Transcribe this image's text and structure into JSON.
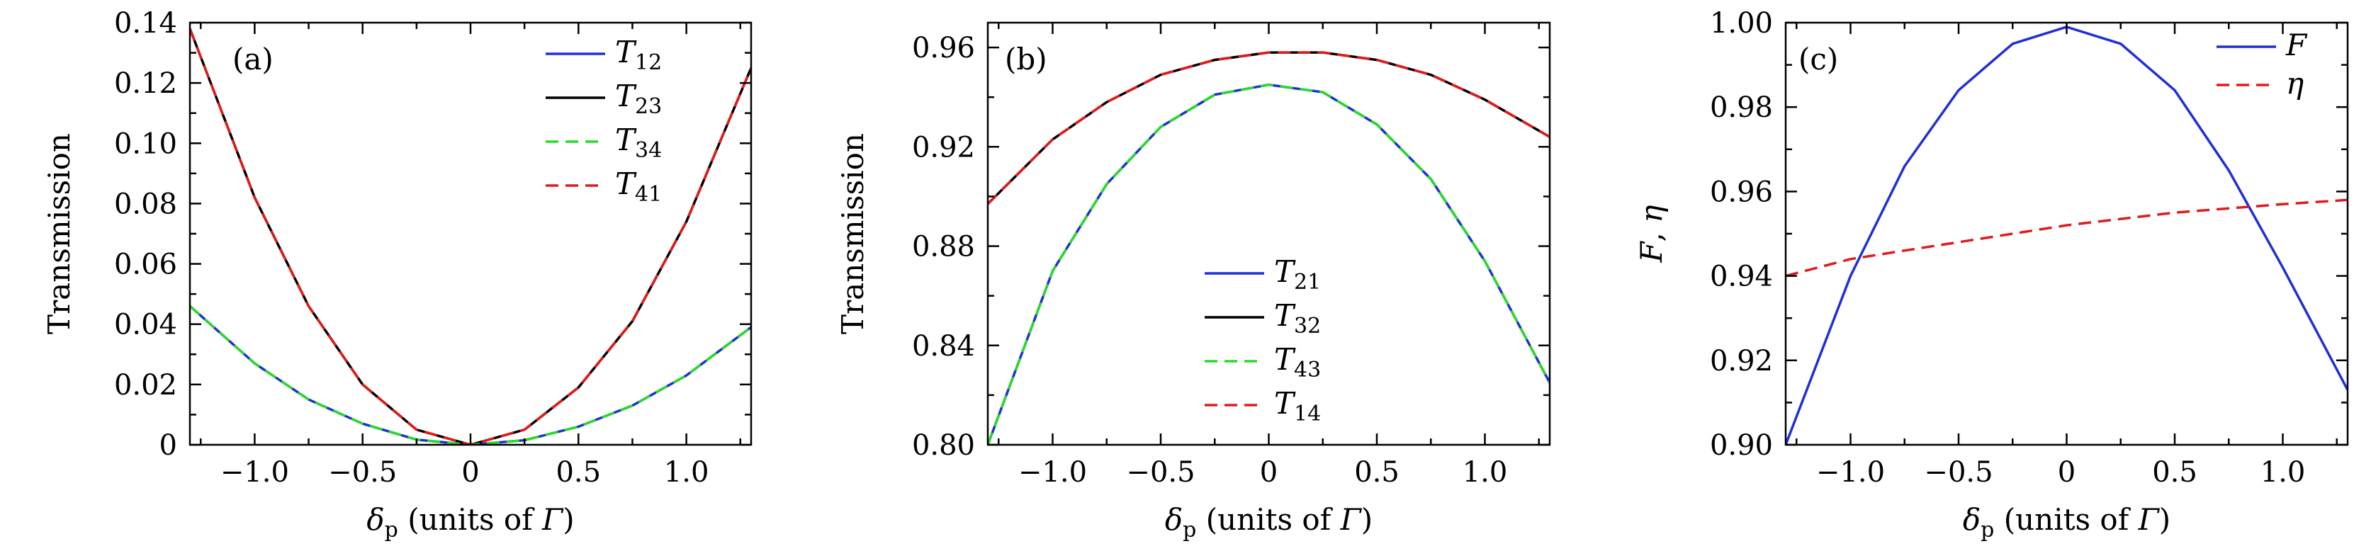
{
  "chart_data": [
    {
      "panel": "(a)",
      "type": "line",
      "xlabel": {
        "main": "δ",
        "sub": "p",
        "rest": " (units of ",
        "unit": "Γ",
        "close": ")"
      },
      "ylabel": "Transmission",
      "xlim": [
        -1.3,
        1.3
      ],
      "ylim": [
        0,
        0.14
      ],
      "xticks": [
        -1.0,
        -0.5,
        0,
        0.5,
        1.0
      ],
      "xtick_labels": [
        "−1.0",
        "−0.5",
        "0",
        "0.5",
        "1.0"
      ],
      "yticks": [
        0,
        0.02,
        0.04,
        0.06,
        0.08,
        0.1,
        0.12,
        0.14
      ],
      "ytick_labels": [
        "0",
        "0.02",
        "0.04",
        "0.06",
        "0.08",
        "0.10",
        "0.12",
        "0.14"
      ],
      "legend_position": "top-right",
      "series": [
        {
          "name": "T",
          "sub": "12",
          "color": "#1f2fd6",
          "dash": "solid",
          "x": [
            -1.3,
            -1.0,
            -0.75,
            -0.5,
            -0.25,
            0,
            0.25,
            0.5,
            0.75,
            1.0,
            1.3
          ],
          "y": [
            0.046,
            0.027,
            0.015,
            0.007,
            0.0017,
            0.0,
            0.0015,
            0.006,
            0.013,
            0.023,
            0.039
          ]
        },
        {
          "name": "T",
          "sub": "23",
          "color": "#000000",
          "dash": "solid",
          "x": [
            -1.3,
            -1.0,
            -0.75,
            -0.5,
            -0.25,
            0,
            0.25,
            0.5,
            0.75,
            1.0,
            1.3
          ],
          "y": [
            0.138,
            0.082,
            0.046,
            0.02,
            0.005,
            0.0,
            0.005,
            0.019,
            0.041,
            0.074,
            0.125
          ]
        },
        {
          "name": "T",
          "sub": "34",
          "color": "#2bd92b",
          "dash": "dashed",
          "x": [
            -1.3,
            -1.0,
            -0.75,
            -0.5,
            -0.25,
            0,
            0.25,
            0.5,
            0.75,
            1.0,
            1.3
          ],
          "y": [
            0.046,
            0.027,
            0.015,
            0.007,
            0.0017,
            0.0,
            0.0015,
            0.006,
            0.013,
            0.023,
            0.039
          ]
        },
        {
          "name": "T",
          "sub": "41",
          "color": "#e01b1b",
          "dash": "dashed",
          "x": [
            -1.3,
            -1.0,
            -0.75,
            -0.5,
            -0.25,
            0,
            0.25,
            0.5,
            0.75,
            1.0,
            1.3
          ],
          "y": [
            0.138,
            0.082,
            0.046,
            0.02,
            0.005,
            0.0,
            0.005,
            0.019,
            0.041,
            0.074,
            0.125
          ]
        }
      ]
    },
    {
      "panel": "(b)",
      "type": "line",
      "xlabel": {
        "main": "δ",
        "sub": "p",
        "rest": " (units of ",
        "unit": "Γ",
        "close": ")"
      },
      "ylabel": "Transmission",
      "xlim": [
        -1.3,
        1.3
      ],
      "ylim": [
        0.8,
        0.97
      ],
      "xticks": [
        -1.0,
        -0.5,
        0,
        0.5,
        1.0
      ],
      "xtick_labels": [
        "−1.0",
        "−0.5",
        "0",
        "0.5",
        "1.0"
      ],
      "yticks": [
        0.8,
        0.84,
        0.88,
        0.92,
        0.96
      ],
      "ytick_labels": [
        "0.80",
        "0.84",
        "0.88",
        "0.92",
        "0.96"
      ],
      "legend_position": "bottom-center",
      "series": [
        {
          "name": "T",
          "sub": "21",
          "color": "#1f2fd6",
          "dash": "solid",
          "x": [
            -1.3,
            -1.0,
            -0.75,
            -0.5,
            -0.25,
            0,
            0.25,
            0.5,
            0.75,
            1.0,
            1.3
          ],
          "y": [
            0.8,
            0.87,
            0.905,
            0.928,
            0.941,
            0.945,
            0.942,
            0.929,
            0.907,
            0.874,
            0.825
          ]
        },
        {
          "name": "T",
          "sub": "32",
          "color": "#000000",
          "dash": "solid",
          "x": [
            -1.3,
            -1.0,
            -0.75,
            -0.5,
            -0.25,
            0,
            0.25,
            0.5,
            0.75,
            1.0,
            1.3
          ],
          "y": [
            0.897,
            0.923,
            0.938,
            0.949,
            0.955,
            0.958,
            0.958,
            0.955,
            0.949,
            0.939,
            0.924
          ]
        },
        {
          "name": "T",
          "sub": "43",
          "color": "#2bd92b",
          "dash": "dashed",
          "x": [
            -1.3,
            -1.0,
            -0.75,
            -0.5,
            -0.25,
            0,
            0.25,
            0.5,
            0.75,
            1.0,
            1.3
          ],
          "y": [
            0.8,
            0.87,
            0.905,
            0.928,
            0.941,
            0.945,
            0.942,
            0.929,
            0.907,
            0.874,
            0.825
          ]
        },
        {
          "name": "T",
          "sub": "14",
          "color": "#e01b1b",
          "dash": "dashed",
          "x": [
            -1.3,
            -1.0,
            -0.75,
            -0.5,
            -0.25,
            0,
            0.25,
            0.5,
            0.75,
            1.0,
            1.3
          ],
          "y": [
            0.897,
            0.923,
            0.938,
            0.949,
            0.955,
            0.958,
            0.958,
            0.955,
            0.949,
            0.939,
            0.924
          ]
        }
      ]
    },
    {
      "panel": "(c)",
      "type": "line",
      "xlabel": {
        "main": "δ",
        "sub": "p",
        "rest": " (units of ",
        "unit": "Γ",
        "close": ")"
      },
      "ylabel": "F, η",
      "xlim": [
        -1.3,
        1.3
      ],
      "ylim": [
        0.9,
        1.0
      ],
      "xticks": [
        -1.0,
        -0.5,
        0,
        0.5,
        1.0
      ],
      "xtick_labels": [
        "−1.0",
        "−0.5",
        "0",
        "0.5",
        "1.0"
      ],
      "yticks": [
        0.9,
        0.92,
        0.94,
        0.96,
        0.98,
        1.0
      ],
      "ytick_labels": [
        "0.90",
        "0.92",
        "0.94",
        "0.96",
        "0.98",
        "1.00"
      ],
      "legend_position": "top-right",
      "series": [
        {
          "name": "F",
          "sub": "",
          "color": "#1f2fd6",
          "dash": "solid",
          "x": [
            -1.3,
            -1.0,
            -0.75,
            -0.5,
            -0.25,
            0,
            0.25,
            0.5,
            0.75,
            1.0,
            1.3
          ],
          "y": [
            0.9,
            0.94,
            0.966,
            0.984,
            0.995,
            0.999,
            0.995,
            0.984,
            0.965,
            0.942,
            0.913
          ]
        },
        {
          "name": "η",
          "sub": "",
          "color": "#e01b1b",
          "dash": "dashed",
          "x": [
            -1.3,
            -1.0,
            -0.75,
            -0.5,
            -0.25,
            0,
            0.25,
            0.5,
            0.75,
            1.0,
            1.3
          ],
          "y": [
            0.94,
            0.944,
            0.946,
            0.948,
            0.95,
            0.952,
            0.9535,
            0.955,
            0.956,
            0.957,
            0.958
          ]
        }
      ]
    }
  ]
}
